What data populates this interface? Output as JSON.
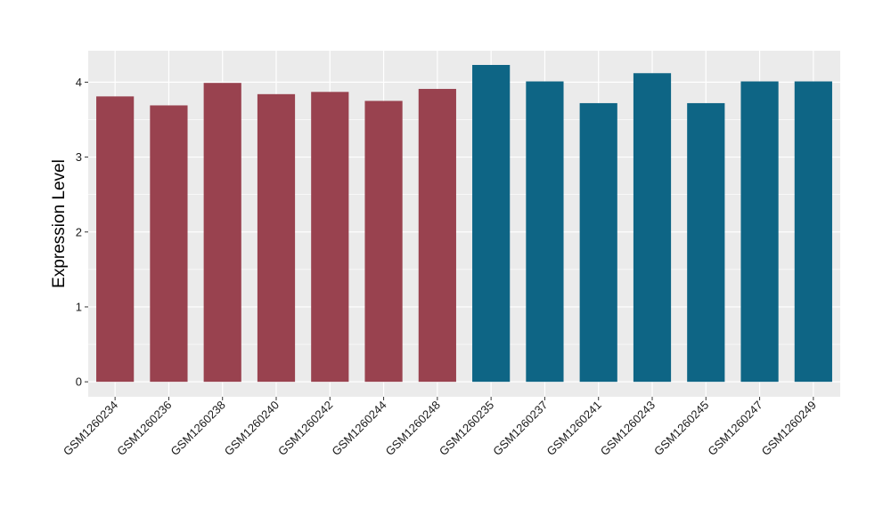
{
  "chart_data": {
    "type": "bar",
    "ylabel": "Expression Level",
    "xlabel": "",
    "ylim": [
      -0.2,
      4.42
    ],
    "yticks": [
      0,
      1,
      2,
      3,
      4
    ],
    "ytick_labels": [
      "0",
      "1",
      "2",
      "3",
      "4"
    ],
    "grid": true,
    "legend": "none",
    "panel_background": "#ebebeb",
    "gridline_color": "#ffffff",
    "categories": [
      "GSM1260234",
      "GSM1260236",
      "GSM1260238",
      "GSM1260240",
      "GSM1260242",
      "GSM1260244",
      "GSM1260248",
      "GSM1260235",
      "GSM1260237",
      "GSM1260241",
      "GSM1260243",
      "GSM1260245",
      "GSM1260247",
      "GSM1260249"
    ],
    "values": [
      3.81,
      3.69,
      3.99,
      3.84,
      3.87,
      3.75,
      3.91,
      4.23,
      4.01,
      3.72,
      4.12,
      3.72,
      4.01,
      4.01
    ],
    "group_colors": [
      "#99424f",
      "#99424f",
      "#99424f",
      "#99424f",
      "#99424f",
      "#99424f",
      "#99424f",
      "#0e6585",
      "#0e6585",
      "#0e6585",
      "#0e6585",
      "#0e6585",
      "#0e6585",
      "#0e6585"
    ]
  }
}
